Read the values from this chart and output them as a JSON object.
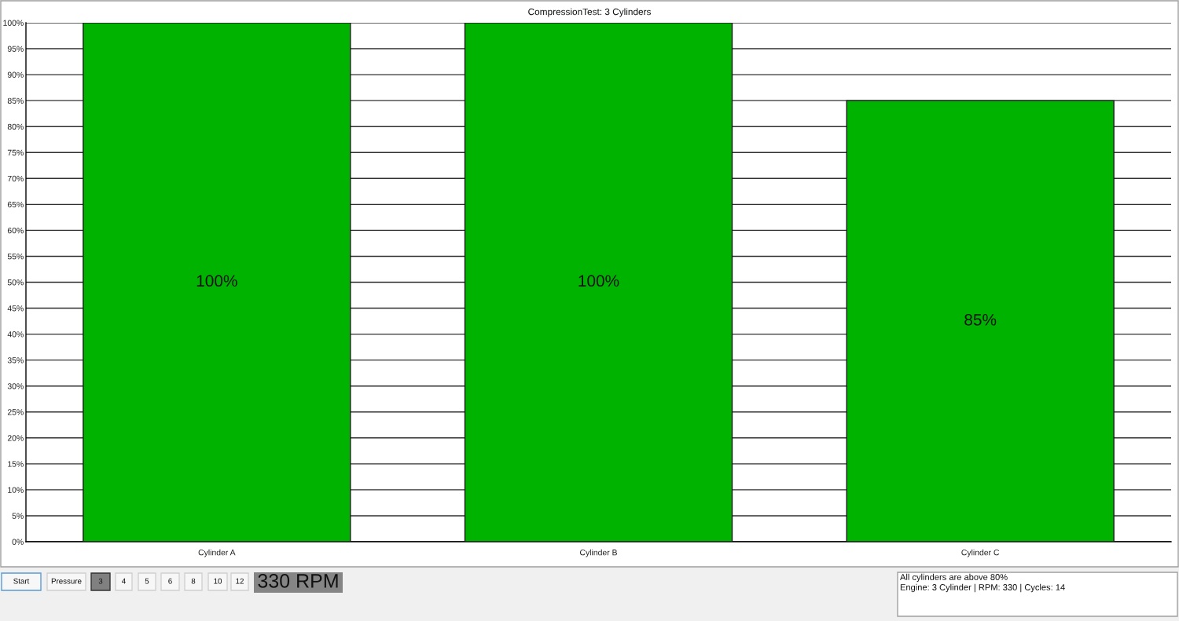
{
  "chart_data": {
    "type": "bar",
    "title": "CompressionTest: 3 Cylinders",
    "categories": [
      "Cylinder A",
      "Cylinder B",
      "Cylinder C"
    ],
    "values": [
      100,
      100,
      85
    ],
    "color": "#00b300",
    "value_labels": [
      "100%",
      "100%",
      "85%"
    ],
    "ylim": [
      0,
      100
    ],
    "yticks": [
      {
        "value": 0,
        "label": "0%"
      },
      {
        "value": 5,
        "label": "5%"
      },
      {
        "value": 10,
        "label": "10%"
      },
      {
        "value": 15,
        "label": "15%"
      },
      {
        "value": 20,
        "label": "20%"
      },
      {
        "value": 25,
        "label": "25%"
      },
      {
        "value": 30,
        "label": "30%"
      },
      {
        "value": 35,
        "label": "35%"
      },
      {
        "value": 40,
        "label": "40%"
      },
      {
        "value": 45,
        "label": "45%"
      },
      {
        "value": 50,
        "label": "50%"
      },
      {
        "value": 55,
        "label": "55%"
      },
      {
        "value": 60,
        "label": "60%"
      },
      {
        "value": 65,
        "label": "65%"
      },
      {
        "value": 70,
        "label": "70%"
      },
      {
        "value": 75,
        "label": "75%"
      },
      {
        "value": 80,
        "label": "80%"
      },
      {
        "value": 85,
        "label": "85%"
      },
      {
        "value": 90,
        "label": "90%"
      },
      {
        "value": 95,
        "label": "95%"
      },
      {
        "value": 100,
        "label": "100%"
      }
    ],
    "grid": "y",
    "annotations": [
      "Start",
      "Pressure",
      "3",
      "4",
      "5",
      "6",
      "8",
      "10",
      "12",
      "330 RPM",
      "All cylinders are above 80%",
      "Engine: 3 Cylinder | RPM: 330 | Cycles: 14"
    ]
  }
}
